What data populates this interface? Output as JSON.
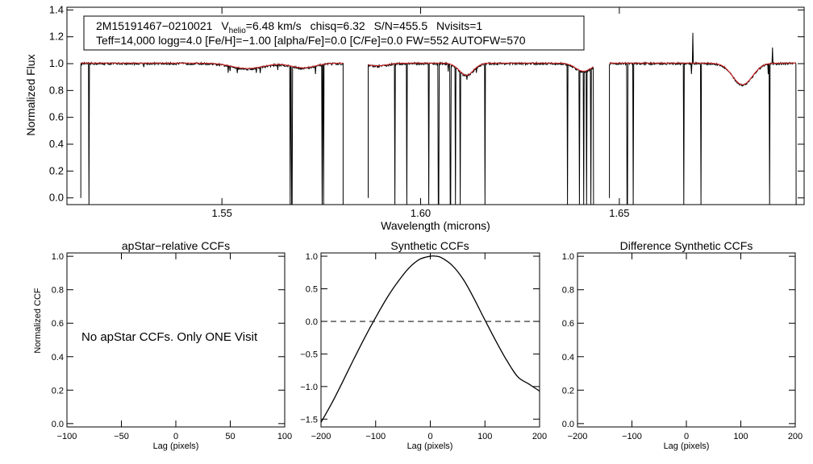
{
  "colors": {
    "observed": "#000000",
    "model": "#e02020",
    "axes": "#000000",
    "reference": "#000000"
  },
  "chart_data": [
    {
      "type": "line",
      "id": "spectrum",
      "xlabel": "Wavelength (microns)",
      "ylabel": "Normalized Flux",
      "xlim": [
        1.511,
        1.6965
      ],
      "ylim": [
        -0.05,
        1.42
      ],
      "xticks": [
        1.55,
        1.6,
        1.65
      ],
      "xtick_labels": [
        "1.55",
        "1.60",
        "1.65"
      ],
      "yticks": [
        0.0,
        0.2,
        0.4,
        0.6,
        0.8,
        1.0,
        1.2,
        1.4
      ],
      "ytick_labels": [
        "0.0",
        "0.2",
        "0.4",
        "0.6",
        "0.8",
        "1.0",
        "1.2",
        "1.4"
      ],
      "info_box": {
        "object": "2M15191467−0210021",
        "vhelio_label": "V",
        "vhelio_sub": "helio",
        "vhelio_value": "=6.48 km/s",
        "chisq": "chisq=6.32",
        "snr": "S/N=455.5",
        "nvisits": "Nvisits=1",
        "params": "Teff=14,000 logg=4.0 [Fe/H]=−1.00 [alpha/Fe]=0.0 [C/Fe]=0.0 FW=552 AUTOFW=570"
      },
      "chips": [
        [
          1.5145,
          1.5805
        ],
        [
          1.5868,
          1.6435
        ],
        [
          1.6475,
          1.6945
        ]
      ],
      "noise": 0.008,
      "absorption_features": [
        {
          "center": 1.5565,
          "depth": 0.04,
          "width": 0.004
        },
        {
          "center": 1.5705,
          "depth": 0.035,
          "width": 0.003
        },
        {
          "center": 1.589,
          "depth": 0.02,
          "width": 0.0025
        },
        {
          "center": 1.6115,
          "depth": 0.09,
          "width": 0.0018
        },
        {
          "center": 1.641,
          "depth": 0.06,
          "width": 0.002
        },
        {
          "center": 1.681,
          "depth": 0.16,
          "width": 0.0025
        }
      ],
      "bad_pixels": [
        1.5165,
        1.5672,
        1.5676,
        1.5752,
        1.5756,
        1.5935,
        1.5965,
        1.602,
        1.6045,
        1.6075,
        1.6088,
        1.61,
        1.6162,
        1.637,
        1.64,
        1.641,
        1.6418,
        1.6428,
        1.652,
        1.6535,
        1.6662,
        1.6705,
        1.6878
      ],
      "spikes": [
        [
          1.6685,
          1.23
        ],
        [
          1.6885,
          1.12
        ]
      ]
    },
    {
      "type": "line",
      "id": "apstar-ccf",
      "title": "apStar−relative CCFs",
      "xlabel": "Lag (pixels)",
      "ylabel": "Normalized CCF",
      "xlim": [
        -100,
        100
      ],
      "ylim": [
        -0.02,
        1.02
      ],
      "xticks": [
        -100,
        -50,
        0,
        50,
        100
      ],
      "xtick_labels": [
        "−100",
        "−50",
        "0",
        "50",
        "100"
      ],
      "yticks": [
        0.0,
        0.2,
        0.4,
        0.6,
        0.8,
        1.0
      ],
      "ytick_labels": [
        "0.0",
        "0.2",
        "0.4",
        "0.6",
        "0.8",
        "1.0"
      ],
      "annotation": "No apStar CCFs.  Only ONE Visit",
      "series": []
    },
    {
      "type": "line",
      "id": "synthetic-ccf",
      "title": "Synthetic CCFs",
      "xlabel": "Lag (pixels)",
      "xlim": [
        -200,
        200
      ],
      "ylim": [
        -1.62,
        1.05
      ],
      "xticks": [
        -200,
        -100,
        0,
        100,
        200
      ],
      "xtick_labels": [
        "−200",
        "−100",
        "0",
        "100",
        "200"
      ],
      "yticks": [
        -1.5,
        -1.0,
        -0.5,
        0.0,
        0.5,
        1.0
      ],
      "ytick_labels": [
        "−1.5",
        "−1.0",
        "−0.5",
        "0.0",
        "0.5",
        "1.0"
      ],
      "reference_line": 0.0,
      "series": [
        {
          "name": "synthetic",
          "x": [
            -200,
            -180,
            -160,
            -140,
            -120,
            -100,
            -80,
            -60,
            -40,
            -20,
            0,
            10,
            20,
            40,
            60,
            80,
            100,
            120,
            140,
            160,
            180,
            200
          ],
          "y": [
            -1.55,
            -1.25,
            -0.92,
            -0.58,
            -0.25,
            0.06,
            0.35,
            0.6,
            0.81,
            0.95,
            1.0,
            1.0,
            0.98,
            0.86,
            0.65,
            0.35,
            0.02,
            -0.3,
            -0.6,
            -0.85,
            -0.96,
            -1.07
          ]
        }
      ]
    },
    {
      "type": "line",
      "id": "difference-ccf",
      "title": "Difference Synthetic CCFs",
      "xlabel": "Lag (pixels)",
      "xlim": [
        -200,
        200
      ],
      "ylim": [
        -0.02,
        1.02
      ],
      "xticks": [
        -200,
        -100,
        0,
        100,
        200
      ],
      "xtick_labels": [
        "−200",
        "−100",
        "0",
        "100",
        "200"
      ],
      "yticks": [
        0.0,
        0.2,
        0.4,
        0.6,
        0.8,
        1.0
      ],
      "ytick_labels": [
        "0.0",
        "0.2",
        "0.4",
        "0.6",
        "0.8",
        "1.0"
      ],
      "series": []
    }
  ]
}
